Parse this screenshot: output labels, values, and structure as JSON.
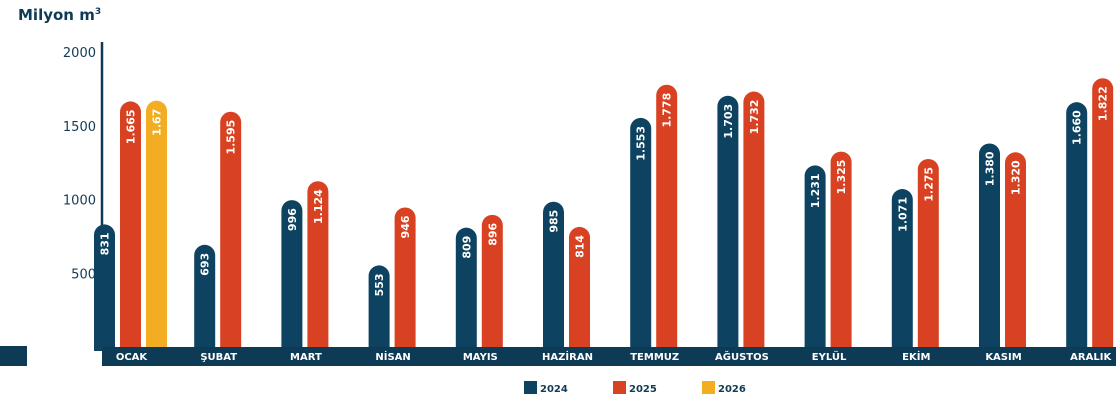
{
  "chart_data": {
    "type": "bar",
    "ylabel_main": "Milyon m",
    "ylabel_sup": "3",
    "yticks": [
      500,
      1000,
      1500,
      2000
    ],
    "ylim": [
      0,
      2000
    ],
    "categories": [
      "OCAK",
      "ŞUBAT",
      "MART",
      "NİSAN",
      "MAYIS",
      "HAZİRAN",
      "TEMMUZ",
      "AĞUSTOS",
      "EYLÜL",
      "EKİM",
      "KASIM",
      "ARALIK"
    ],
    "series": [
      {
        "name": "2024",
        "color": "#0d4360",
        "values": [
          831,
          693,
          996,
          553,
          809,
          985,
          1553,
          1703,
          1231,
          1071,
          1380,
          1660
        ],
        "labels": [
          "831",
          "693",
          "996",
          "553",
          "809",
          "985",
          "1.553",
          "1.703",
          "1.231",
          "1.071",
          "1.380",
          "1.660"
        ]
      },
      {
        "name": "2025",
        "color": "#d84222",
        "values": [
          1665,
          1595,
          1124,
          946,
          896,
          814,
          1778,
          1732,
          1325,
          1275,
          1320,
          1822
        ],
        "labels": [
          "1.665",
          "1.595",
          "1.124",
          "946",
          "896",
          "814",
          "1.778",
          "1.732",
          "1.325",
          "1.275",
          "1.320",
          "1.822"
        ]
      },
      {
        "name": "2026",
        "color": "#f2ad22",
        "values": [
          1670,
          null,
          null,
          null,
          null,
          null,
          null,
          null,
          null,
          null,
          null,
          null
        ],
        "labels": [
          "1.67",
          "",
          "",
          "",
          "",
          "",
          "",
          "",
          "",
          "",
          "",
          ""
        ]
      }
    ],
    "grid": false,
    "legend_position": "bottom-center"
  }
}
